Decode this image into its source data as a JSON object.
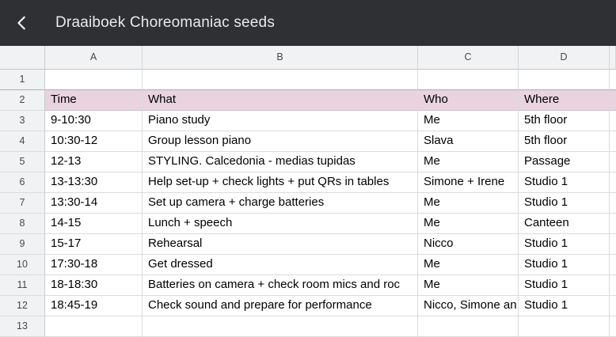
{
  "appbar": {
    "title": "Draaiboek Choreomaniac seeds",
    "back_icon": "chevron-left"
  },
  "colors": {
    "appbar_bg": "#2e3033",
    "appbar_text": "#e8eaed",
    "header_bg": "#f1f2f3",
    "header_text": "#45484b",
    "grid_line": "#dadcdd",
    "highlight_row_bg": "#e8d3de",
    "cell_text": "#000000"
  },
  "sheet": {
    "column_letters": [
      "A",
      "B",
      "C",
      "D"
    ],
    "rows": [
      {
        "n": "1",
        "highlight": false,
        "cells": [
          "",
          "",
          "",
          ""
        ]
      },
      {
        "n": "2",
        "highlight": true,
        "cells": [
          "Time",
          "What",
          "Who",
          "Where"
        ]
      },
      {
        "n": "3",
        "highlight": false,
        "cells": [
          "9-10:30",
          "Piano study",
          "Me",
          "5th floor"
        ]
      },
      {
        "n": "4",
        "highlight": false,
        "cells": [
          "10:30-12",
          "Group lesson piano",
          "Slava",
          "5th floor"
        ]
      },
      {
        "n": "5",
        "highlight": false,
        "cells": [
          "12-13",
          "STYLING. Calcedonia - medias tupidas",
          "Me",
          "Passage"
        ]
      },
      {
        "n": "6",
        "highlight": false,
        "cells": [
          "13-13:30",
          "Help set-up + check lights + put QRs in tables",
          "Simone + Irene",
          "Studio 1"
        ]
      },
      {
        "n": "7",
        "highlight": false,
        "cells": [
          "13:30-14",
          "Set up camera + charge batteries",
          "Me",
          "Studio 1"
        ]
      },
      {
        "n": "8",
        "highlight": false,
        "cells": [
          "14-15",
          "Lunch + speech",
          "Me",
          "Canteen"
        ]
      },
      {
        "n": "9",
        "highlight": false,
        "cells": [
          "15-17",
          "Rehearsal",
          "Nicco",
          "Studio 1"
        ]
      },
      {
        "n": "10",
        "highlight": false,
        "cells": [
          "17:30-18",
          "Get dressed",
          "Me",
          "Studio 1"
        ]
      },
      {
        "n": "11",
        "highlight": false,
        "cells": [
          "18-18:30",
          "Batteries on camera + check room mics and roc",
          "Me",
          "Studio 1"
        ]
      },
      {
        "n": "12",
        "highlight": false,
        "cells": [
          "18:45-19",
          "Check sound and prepare for performance",
          "Nicco, Simone an",
          "Studio 1"
        ]
      },
      {
        "n": "13",
        "highlight": false,
        "cells": [
          "",
          "",
          "",
          ""
        ]
      }
    ]
  }
}
